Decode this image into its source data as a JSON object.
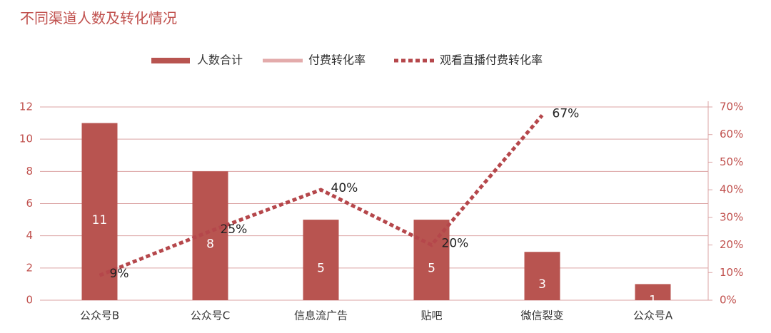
{
  "chart_data": {
    "type": "bar-line",
    "title": "不同渠道人数及转化情况",
    "categories": [
      "公众号B",
      "公众号C",
      "信息流广告",
      "贴吧",
      "微信裂变",
      "公众号A"
    ],
    "series": [
      {
        "name": "人数合计",
        "type": "bar",
        "color": "#b85450",
        "values": [
          11,
          8,
          5,
          5,
          3,
          1
        ]
      },
      {
        "name": "付费转化率",
        "type": "line",
        "axis": "y2",
        "color": "#e3abab",
        "values": [
          null,
          null,
          null,
          null,
          null,
          null
        ]
      },
      {
        "name": "观看直播付费转化率",
        "type": "line",
        "axis": "y2",
        "dashed": true,
        "color": "#b5474b",
        "values": [
          9,
          25,
          40,
          20,
          67,
          null
        ],
        "value_labels": [
          "9%",
          "25%",
          "40%",
          "20%",
          "67%",
          null
        ]
      }
    ],
    "ylim": [
      0,
      12
    ],
    "yticks": [
      0,
      2,
      4,
      6,
      8,
      10,
      12
    ],
    "y2lim": [
      0,
      70
    ],
    "y2ticks": [
      {
        "value": 0,
        "label": "0%"
      },
      {
        "value": 10,
        "label": "10%"
      },
      {
        "value": 20,
        "label": "20%"
      },
      {
        "value": 30,
        "label": "30%"
      },
      {
        "value": 40,
        "label": "40%"
      },
      {
        "value": 50,
        "label": "50%"
      },
      {
        "value": 60,
        "label": "60%"
      },
      {
        "value": 70,
        "label": "70%"
      }
    ],
    "grid": true,
    "legend": "top"
  }
}
